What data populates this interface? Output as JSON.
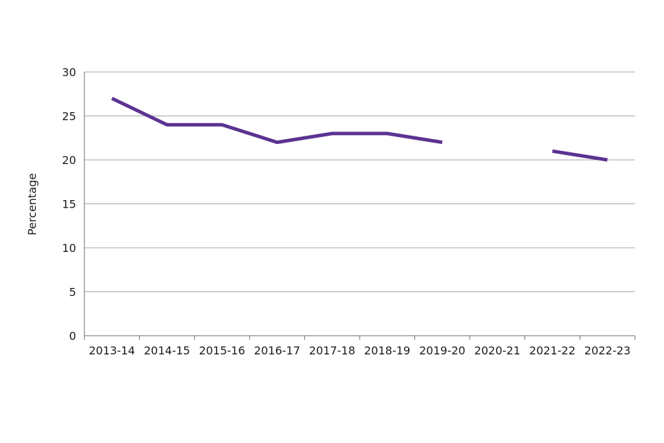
{
  "colors": {
    "series": "#5b3391"
  },
  "chart_data": {
    "type": "line",
    "title": "",
    "xlabel": "",
    "ylabel": "Percentage",
    "ylim": [
      0,
      30
    ],
    "yticks": [
      0,
      5,
      10,
      15,
      20,
      25,
      30
    ],
    "categories": [
      "2013-14",
      "2014-15",
      "2015-16",
      "2016-17",
      "2017-18",
      "2018-19",
      "2019-20",
      "2020-21",
      "2021-22",
      "2022-23"
    ],
    "series": [
      {
        "name": "Percentage",
        "values": [
          27,
          24,
          24,
          22,
          23,
          23,
          22,
          null,
          21,
          20
        ]
      }
    ],
    "grid": true
  }
}
